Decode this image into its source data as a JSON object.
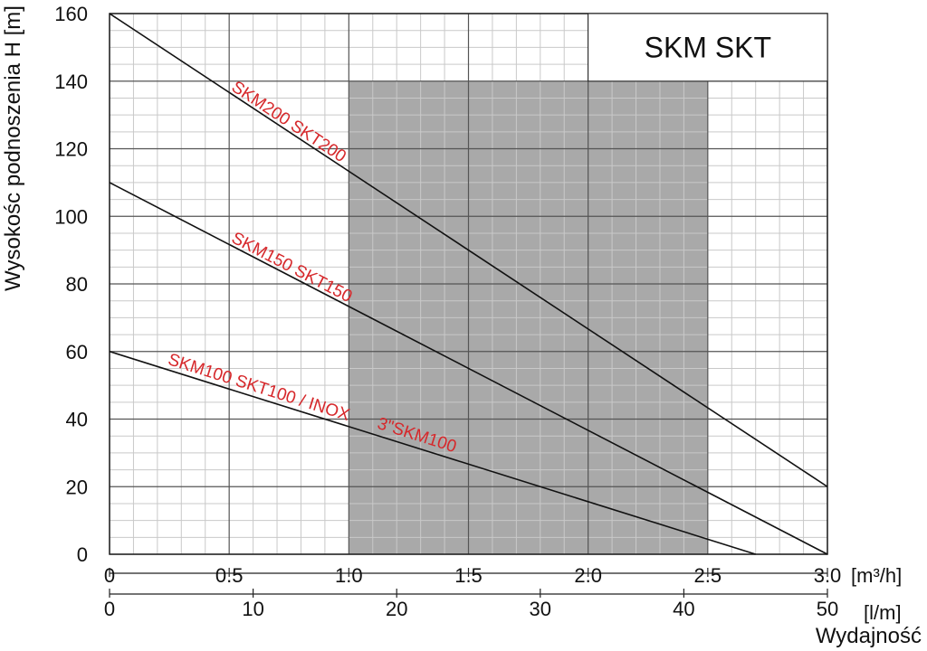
{
  "chart_data": {
    "type": "line",
    "title": "SKM SKT",
    "ylabel": "Wysokośc podnoszenia H [m]",
    "xlabel": "Wydajność",
    "x_unit_primary": "[m³/h]",
    "x_unit_secondary": "[l/m]",
    "xlim": [
      0,
      3.0
    ],
    "ylim": [
      0,
      160
    ],
    "grid": true,
    "x_ticks": [
      "0",
      "0.5",
      "1.0",
      "1.5",
      "2.0",
      "2.5",
      "3.0"
    ],
    "x_tick_values": [
      0,
      0.5,
      1.0,
      1.5,
      2.0,
      2.5,
      3.0
    ],
    "x2_ticks": [
      "0",
      "10",
      "20",
      "30",
      "40",
      "50"
    ],
    "x2_tick_values": [
      0,
      10,
      20,
      30,
      40,
      50
    ],
    "y_ticks": [
      "0",
      "20",
      "40",
      "60",
      "80",
      "100",
      "120",
      "140",
      "160"
    ],
    "y_tick_values": [
      0,
      20,
      40,
      60,
      80,
      100,
      120,
      140,
      160
    ],
    "shaded_region": {
      "x": [
        1.0,
        2.5
      ],
      "y": [
        0,
        140
      ],
      "color": "#a9a9a9"
    },
    "series": [
      {
        "name": "SKM200 SKT200",
        "x": [
          0,
          3.0
        ],
        "y": [
          160,
          20
        ]
      },
      {
        "name": "SKM150 SKT150",
        "x": [
          0,
          3.0
        ],
        "y": [
          110,
          0
        ]
      },
      {
        "name": "SKM100 SKT100 / INOX",
        "x": [
          0,
          2.7
        ],
        "y": [
          60,
          0
        ]
      }
    ],
    "annotations": [
      {
        "text": "SKM200 SKT200",
        "series": 0,
        "color": "#d6282b"
      },
      {
        "text": "SKM150 SKT150",
        "series": 1,
        "color": "#d6282b"
      },
      {
        "text": "SKM100 SKT100 / INOX",
        "series": 2,
        "color": "#d6282b"
      },
      {
        "text": "3\"SKM100",
        "series": 2,
        "color": "#d6282b"
      }
    ]
  }
}
